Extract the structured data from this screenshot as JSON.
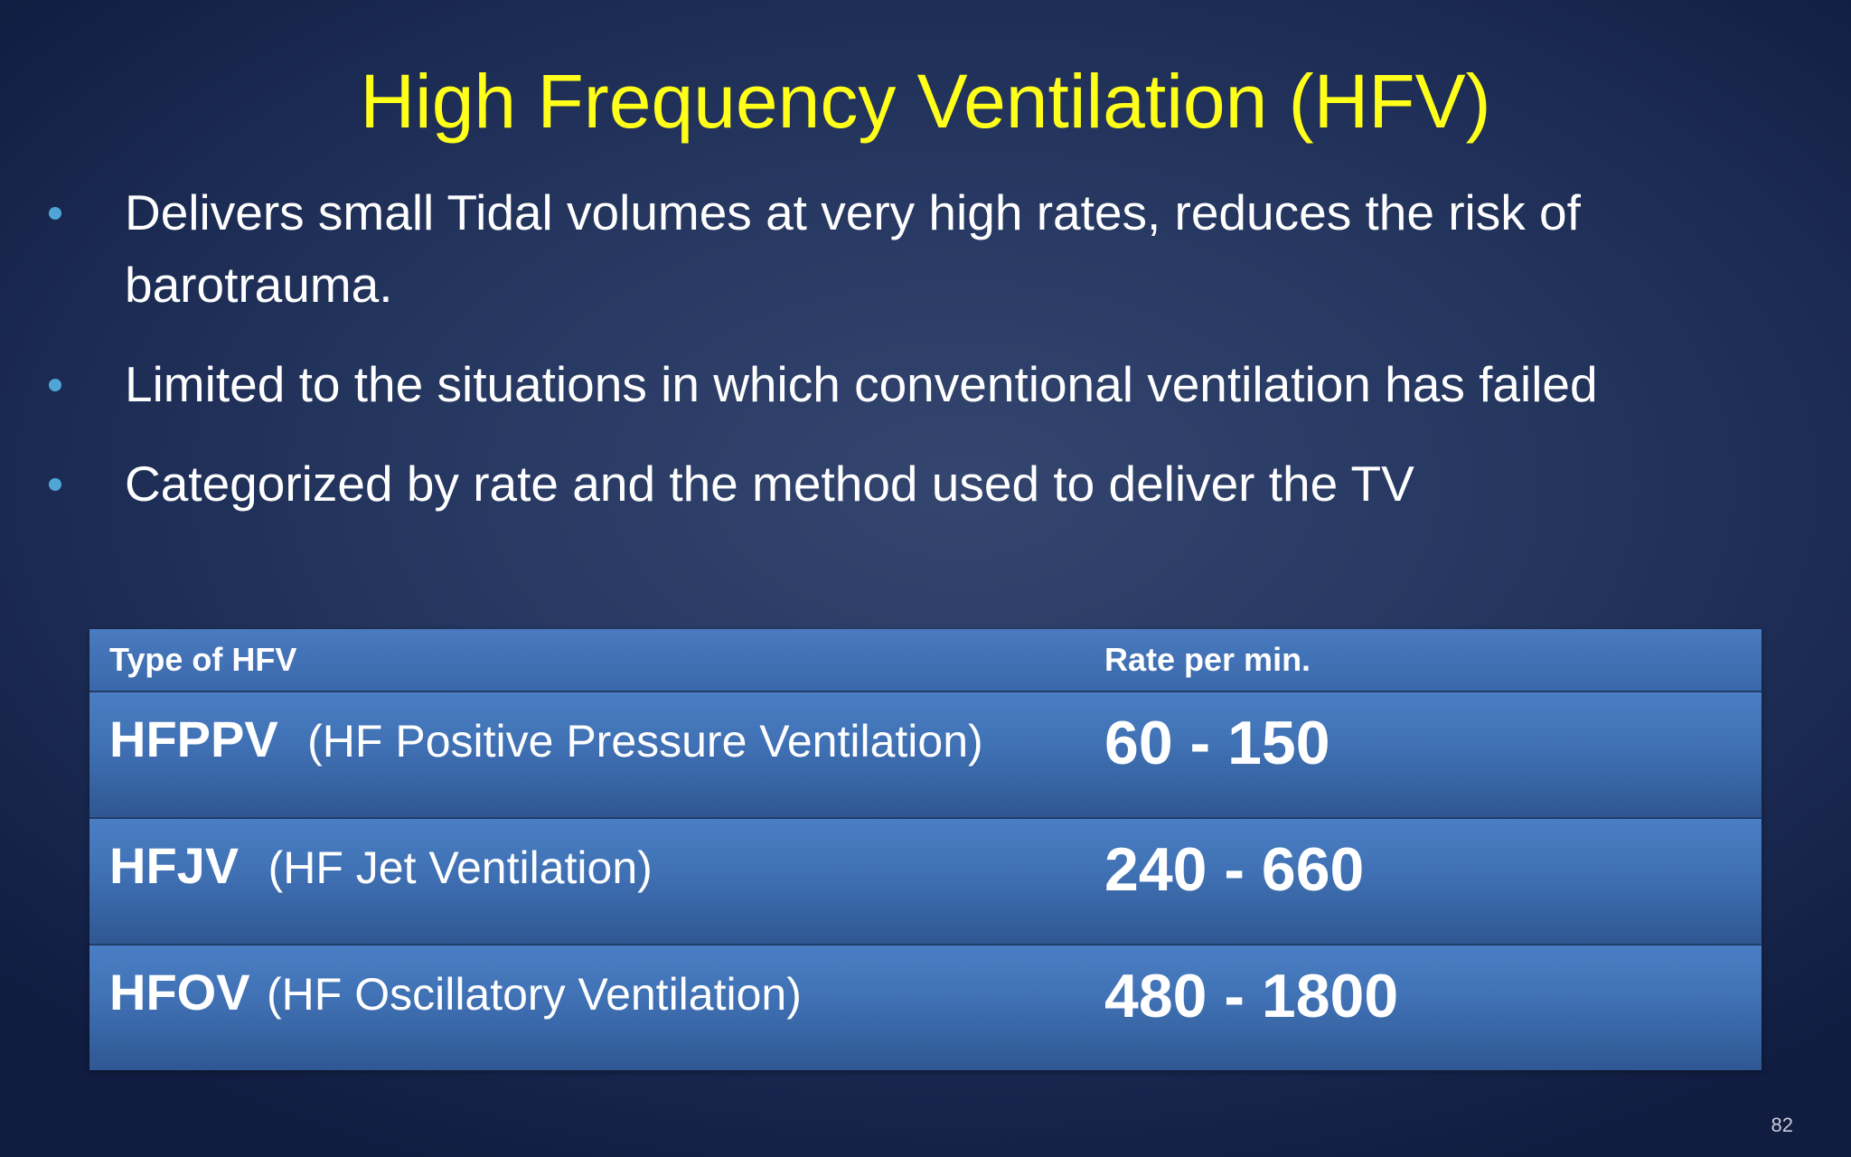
{
  "slide": {
    "title": "High Frequency Ventilation (HFV)",
    "bullets": [
      "Delivers small Tidal volumes at very high rates, reduces the risk of barotrauma.",
      "Limited to the situations in which conventional ventilation has failed",
      "Categorized by rate and the method used to deliver the TV"
    ],
    "table": {
      "headers": [
        "Type of HFV",
        "Rate per min."
      ],
      "rows": [
        {
          "abbr": "HFPPV",
          "full": "(HF Positive Pressure Ventilation)",
          "rate": "60 - 150"
        },
        {
          "abbr": "HFJV",
          "full": "(HF Jet Ventilation)",
          "rate": "240 - 660"
        },
        {
          "abbr": "HFOV",
          "full": "(HF Oscillatory Ventilation)",
          "rate": "480 - 1800"
        }
      ]
    },
    "page_number": "82"
  },
  "colors": {
    "title": "#ffff1a",
    "bullet_marker": "#4fa6d6",
    "table_fill": "#4177bb",
    "background": "#1b2a52"
  }
}
